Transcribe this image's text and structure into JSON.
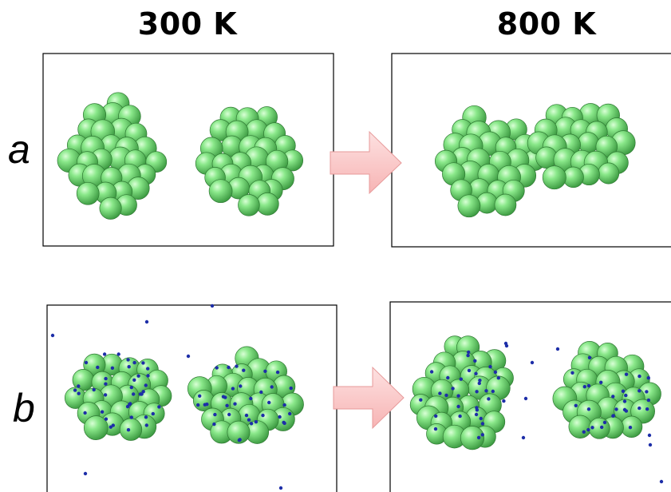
{
  "columns": {
    "left_title": "300 K",
    "right_title": "800 K"
  },
  "rows": {
    "a_label": "a",
    "b_label": "b"
  },
  "colors": {
    "atom_fill": "#7ce07c",
    "atom_edge": "#2f7a33",
    "dopant": "#1d2ea8",
    "arrow_fill": "#fbc7c7",
    "arrow_edge": "#e79a9a",
    "frame": "#000000"
  }
}
